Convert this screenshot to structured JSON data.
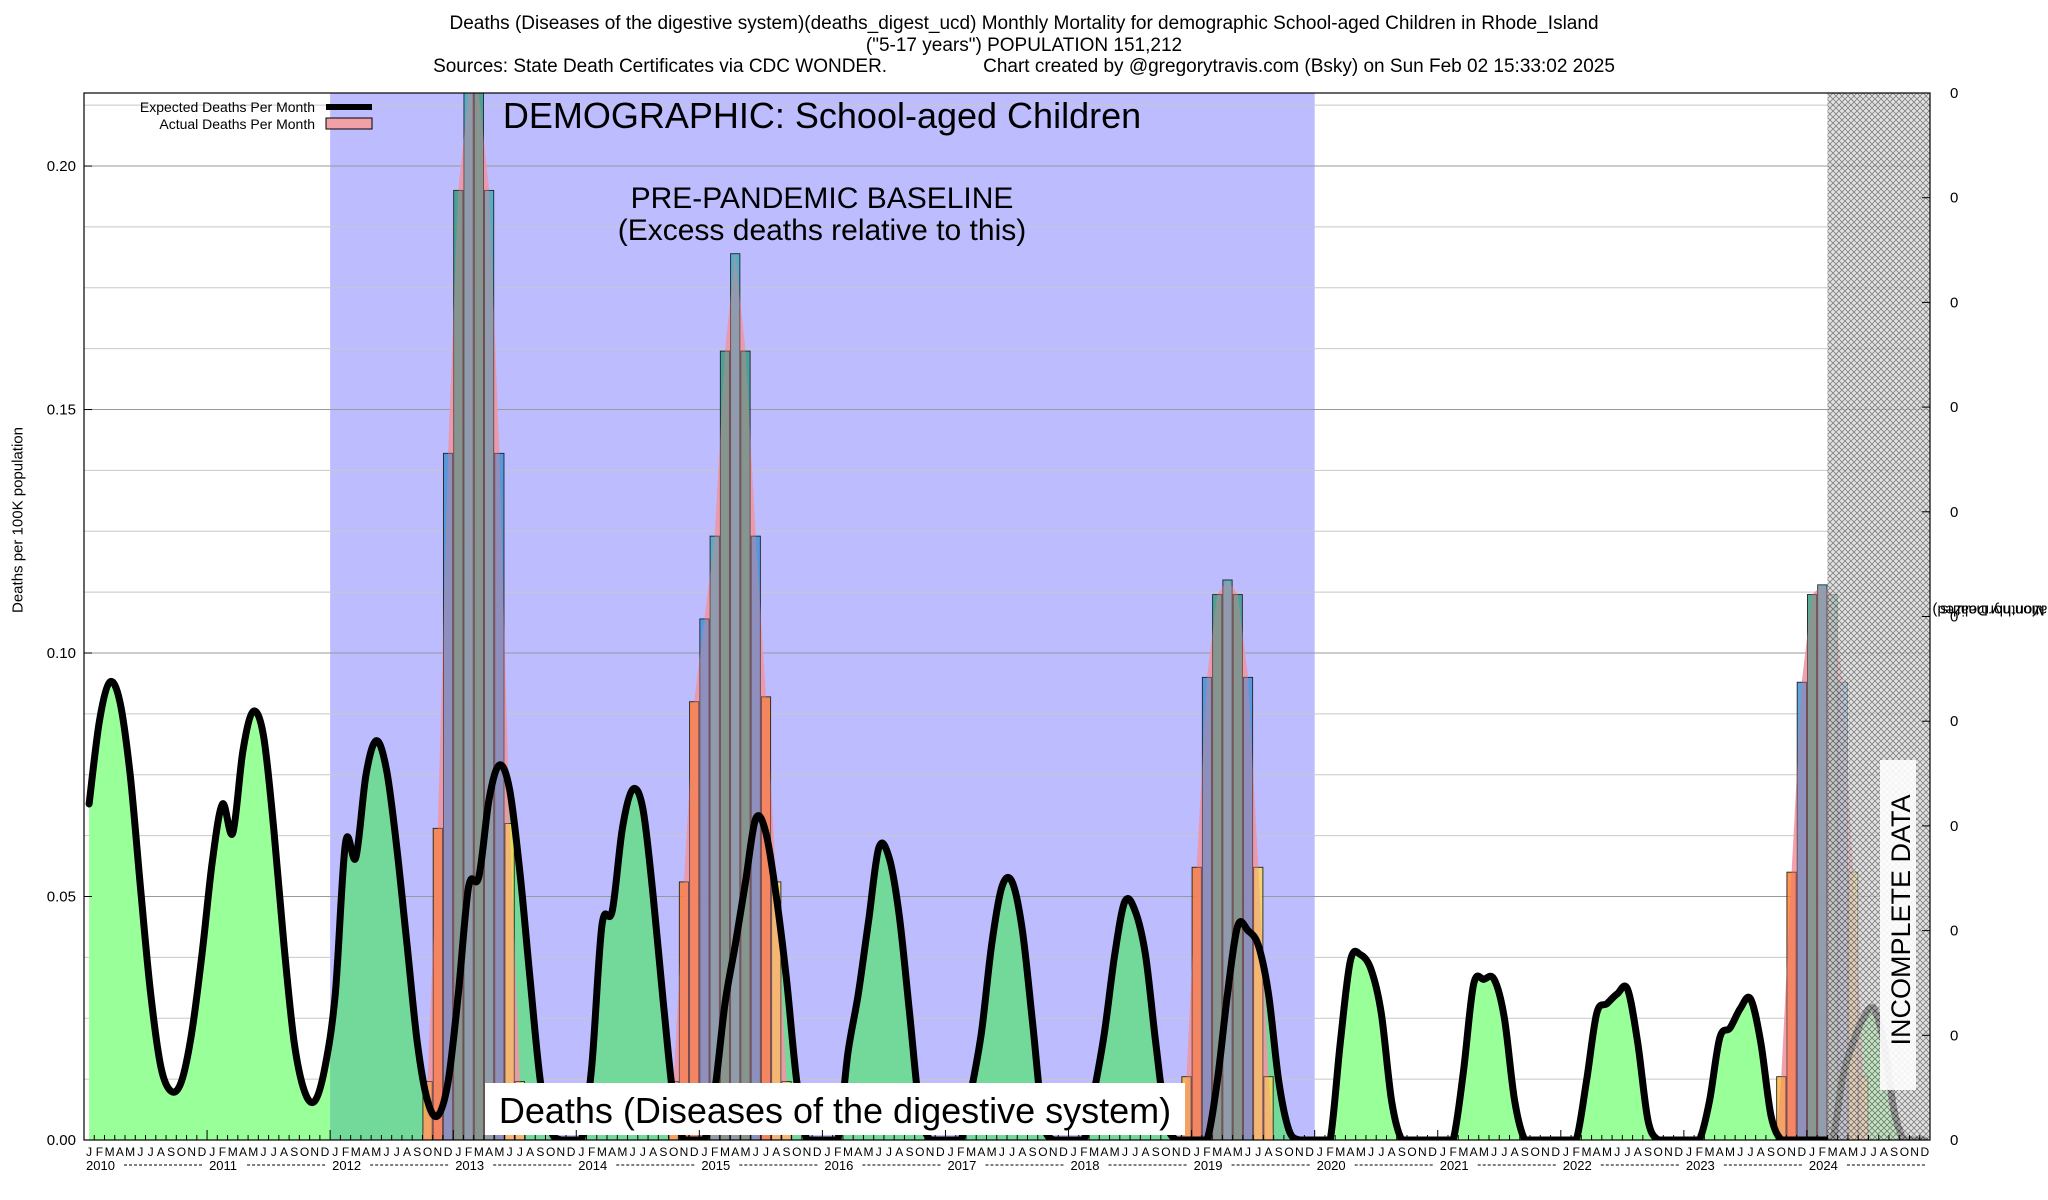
{
  "header": {
    "line1": "Deaths (Diseases of the digestive system)(deaths_digest_ucd)  Monthly Mortality for demographic School-aged Children in Rhode_Island",
    "line2": "(\"5-17 years\") POPULATION 151,212",
    "line3_left": "Sources: State Death Certificates via CDC WONDER.",
    "line3_right": "Chart created by @gregorytravis.com (Bsky) on Sun Feb 02 15:33:02 2025"
  },
  "chart_data": {
    "type": "area",
    "ylabel": "Deaths per 100K population",
    "y2label_line1": "Total Monthly Deaths",
    "y2label_line2": "(2023 population normalized)",
    "ylim": [
      0,
      0.215
    ],
    "yticks": [
      "0.00",
      "0.05",
      "0.10",
      "0.15",
      "0.20"
    ],
    "y2ticks": [
      "0",
      "0",
      "0",
      "0",
      "0",
      "0",
      "0",
      "0",
      "0",
      "0",
      "0"
    ],
    "month_letters": [
      "J",
      "F",
      "M",
      "A",
      "M",
      "J",
      "J",
      "A",
      "S",
      "O",
      "N",
      "D"
    ],
    "years": [
      "2010",
      "2011",
      "2012",
      "2013",
      "2014",
      "2015",
      "2016",
      "2017",
      "2018",
      "2019",
      "2020",
      "2021",
      "2022",
      "2023",
      "2024"
    ],
    "legend": {
      "expected": "Expected Deaths Per Month",
      "actual": "Actual Deaths Per Month",
      "placement": "top-left"
    },
    "annotations": {
      "demographic": "DEMOGRAPHIC: School-aged Children",
      "baseline_line1": "PRE-PANDEMIC BASELINE",
      "baseline_line2": "(Excess deaths relative to this)",
      "cause": "Deaths (Diseases of the digestive system)",
      "incomplete": "INCOMPLETE DATA"
    },
    "baseline_range": [
      "2012-01",
      "2019-12"
    ],
    "incomplete_from": "2024-03",
    "expected": [
      0.069,
      0.086,
      0.094,
      0.09,
      0.075,
      0.052,
      0.03,
      0.015,
      0.01,
      0.012,
      0.022,
      0.038,
      0.057,
      0.069,
      0.063,
      0.08,
      0.088,
      0.083,
      0.064,
      0.04,
      0.02,
      0.01,
      0.008,
      0.015,
      0.03,
      0.061,
      0.058,
      0.075,
      0.082,
      0.076,
      0.06,
      0.04,
      0.02,
      0.008,
      0.005,
      0.012,
      0.03,
      0.052,
      0.054,
      0.07,
      0.077,
      0.072,
      0.055,
      0.033,
      0.012,
      0.002,
      0.0,
      0.0,
      0.0,
      0.015,
      0.044,
      0.047,
      0.064,
      0.072,
      0.068,
      0.05,
      0.028,
      0.008,
      0.0,
      0.0,
      0.0,
      0.01,
      0.028,
      0.04,
      0.053,
      0.066,
      0.063,
      0.05,
      0.033,
      0.012,
      0.0,
      0.0,
      0.0,
      0.0,
      0.018,
      0.03,
      0.045,
      0.06,
      0.058,
      0.046,
      0.026,
      0.006,
      0.0,
      0.0,
      0.0,
      0.0,
      0.01,
      0.022,
      0.04,
      0.052,
      0.053,
      0.043,
      0.024,
      0.004,
      0.0,
      0.0,
      0.0,
      0.0,
      0.01,
      0.022,
      0.038,
      0.049,
      0.047,
      0.038,
      0.02,
      0.004,
      0.0,
      0.0,
      0.0,
      0.0,
      0.012,
      0.03,
      0.044,
      0.043,
      0.04,
      0.03,
      0.012,
      0.002,
      0.0,
      0.0,
      0.0,
      0.0,
      0.02,
      0.037,
      0.038,
      0.035,
      0.026,
      0.008,
      0.0,
      0.0,
      0.0,
      0.0,
      0.0,
      0.0,
      0.014,
      0.032,
      0.033,
      0.033,
      0.025,
      0.008,
      0.0,
      0.0,
      0.0,
      0.0,
      0.0,
      0.0,
      0.012,
      0.026,
      0.028,
      0.03,
      0.031,
      0.02,
      0.004,
      0.0,
      0.0,
      0.0,
      0.0,
      0.0,
      0.008,
      0.021,
      0.023,
      0.027,
      0.029,
      0.02,
      0.005,
      0.0,
      0.0,
      0.0,
      0.0,
      0.0,
      0.0,
      0.013,
      0.02,
      0.025,
      0.027,
      0.02,
      0.006,
      0.0,
      0.0,
      0.0
    ],
    "actual_peaks": [
      {
        "start": "2012-10",
        "values": [
          0.012,
          0.064,
          0.141,
          0.195,
          0.215,
          0.215,
          0.195,
          0.141,
          0.065,
          0.012
        ]
      },
      {
        "start": "2014-10",
        "values": [
          0.012,
          0.053,
          0.09,
          0.107,
          0.124,
          0.162,
          0.182,
          0.162,
          0.124,
          0.091,
          0.053,
          0.012
        ]
      },
      {
        "start": "2018-12",
        "values": [
          0.013,
          0.056,
          0.095,
          0.112,
          0.115,
          0.112,
          0.095,
          0.056,
          0.013
        ]
      },
      {
        "start": "2023-10",
        "values": [
          0.013,
          0.055,
          0.094,
          0.112,
          0.114,
          0.112,
          0.094,
          0.055,
          0.013
        ]
      }
    ],
    "colors": {
      "green": "#99ff99",
      "baseline": "#bcbcff",
      "baseline_green": "#73d99a",
      "actual_fill": "#f2a0a8",
      "expected_line": "#000000",
      "bar_palette": [
        "#ffd84d",
        "#ffb030",
        "#ff7a2a",
        "#3b8fd6",
        "#40a8b8",
        "#2e9a80"
      ]
    }
  }
}
